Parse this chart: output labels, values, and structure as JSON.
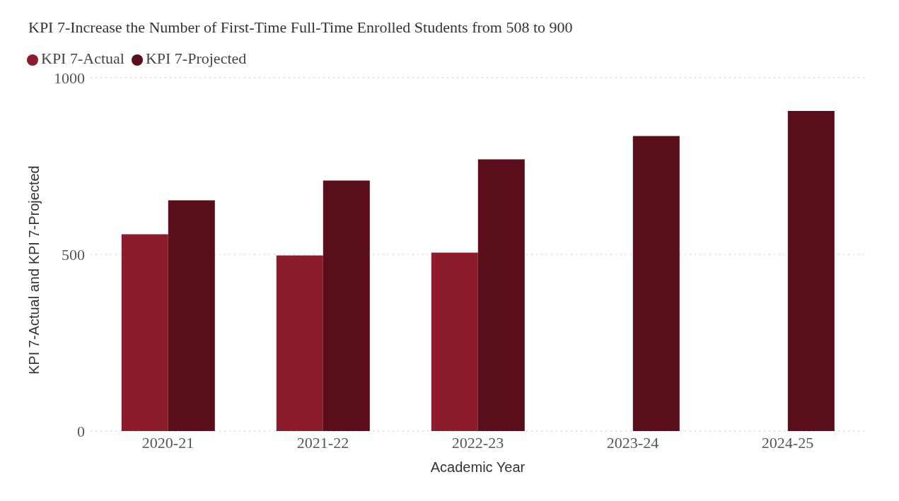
{
  "chart_data": {
    "type": "bar",
    "title": "KPI 7-Increase the Number of First-Time Full-Time Enrolled Students from 508 to 900",
    "xlabel": "Academic Year",
    "ylabel": "KPI 7-Actual and KPI 7-Projected",
    "categories": [
      "2020-21",
      "2021-22",
      "2022-23",
      "2023-24",
      "2024-25"
    ],
    "series": [
      {
        "name": "KPI 7-Actual",
        "color": "#8c1c2c",
        "values": [
          557,
          497,
          505,
          null,
          null
        ]
      },
      {
        "name": "KPI 7-Projected",
        "color": "#5a0d1b",
        "values": [
          653,
          709,
          769,
          835,
          906
        ]
      }
    ],
    "ylim": [
      0,
      1000
    ],
    "yticks": [
      0,
      500,
      1000
    ],
    "grid": "y",
    "legend": "top left"
  }
}
